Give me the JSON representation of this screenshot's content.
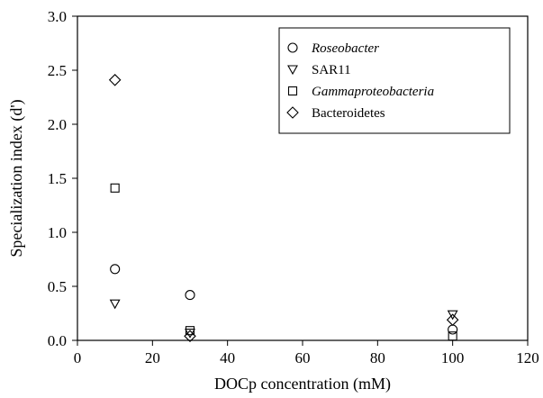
{
  "chart_data": {
    "type": "scatter",
    "xlabel": "DOCp concentration (mM)",
    "ylabel": "Specialization index (d')",
    "xlim": [
      0,
      120
    ],
    "ylim": [
      0,
      3.0
    ],
    "x_ticks": [
      "0",
      "20",
      "40",
      "60",
      "80",
      "100",
      "120"
    ],
    "y_ticks": [
      "0.0",
      "0.5",
      "1.0",
      "1.5",
      "2.0",
      "2.5",
      "3.0"
    ],
    "grid": false,
    "legend_placement": "top-right",
    "series": [
      {
        "name": "Roseobacter",
        "italic": true,
        "marker": "circle",
        "points": [
          [
            10,
            0.66
          ],
          [
            30,
            0.42
          ],
          [
            100,
            0.1
          ]
        ]
      },
      {
        "name": "SAR11",
        "italic": false,
        "marker": "triangle-down",
        "points": [
          [
            10,
            0.34
          ],
          [
            30,
            0.07
          ],
          [
            100,
            0.24
          ]
        ]
      },
      {
        "name": "Gammaproteobacteria",
        "italic": true,
        "marker": "square",
        "points": [
          [
            10,
            1.41
          ],
          [
            30,
            0.09
          ],
          [
            100,
            0.04
          ]
        ]
      },
      {
        "name": "Bacteroidetes",
        "italic": false,
        "marker": "diamond",
        "points": [
          [
            10,
            2.41
          ],
          [
            30,
            0.04
          ],
          [
            100,
            0.19
          ]
        ]
      }
    ]
  }
}
